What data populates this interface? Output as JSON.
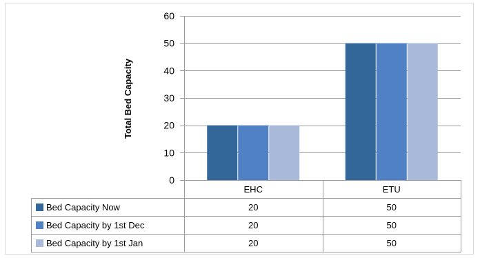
{
  "chart_data": {
    "type": "bar",
    "categories": [
      "EHC",
      "ETU"
    ],
    "ylabel": "Total Bed Capacity",
    "ylim": [
      0,
      60
    ],
    "yticks": [
      0,
      10,
      20,
      30,
      40,
      50,
      60
    ],
    "grid": true,
    "legend": "data-table",
    "series": [
      {
        "name": "Bed Capacity Now",
        "values": [
          20,
          50
        ],
        "color": "#336699"
      },
      {
        "name": "Bed Capacity by 1st Dec",
        "values": [
          20,
          50
        ],
        "color": "#4f81c4"
      },
      {
        "name": "Bed Capacity by 1st Jan",
        "values": [
          20,
          50
        ],
        "color": "#a9b9da"
      }
    ]
  }
}
